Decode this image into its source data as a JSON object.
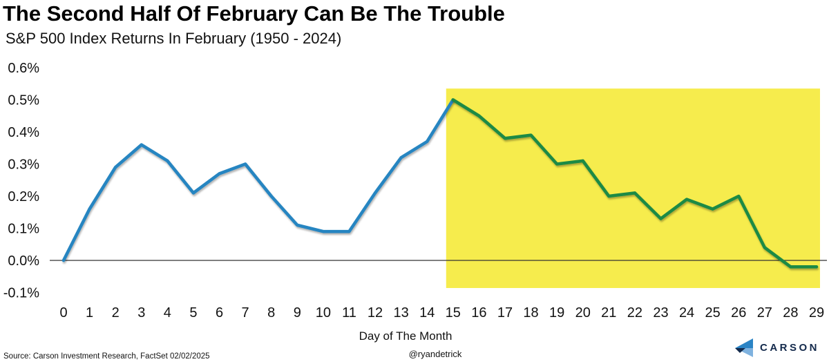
{
  "header": {
    "title": "The Second Half Of February Can Be The Trouble",
    "subtitle": "S&P 500 Index Returns In February (1950 - 2024)"
  },
  "footer": {
    "source": "Source: Carson Investment Research, FactSet 02/02/2025",
    "handle": "@ryandetrick",
    "logo_text": "CARSON"
  },
  "colors": {
    "first_half_line": "#2585C1",
    "second_half_line": "#1C8A44",
    "highlight": "#F6EC4D",
    "axis_line": "#333333",
    "tick_text": "#111111",
    "logo_navy": "#13294B",
    "logo_blue": "#2B84C5",
    "logo_light_blue": "#7FB2DF"
  },
  "chart_data": {
    "type": "line",
    "title": "The Second Half Of February Can Be The Trouble",
    "subtitle": "S&P 500 Index Returns In February (1950 - 2024)",
    "xlabel": "Day of The Month",
    "ylabel": "",
    "x": [
      0,
      1,
      2,
      3,
      4,
      5,
      6,
      7,
      8,
      9,
      10,
      11,
      12,
      13,
      14,
      15,
      16,
      17,
      18,
      19,
      20,
      21,
      22,
      23,
      24,
      25,
      26,
      27,
      28,
      29
    ],
    "values_pct": [
      0.0,
      0.16,
      0.29,
      0.36,
      0.31,
      0.21,
      0.27,
      0.3,
      0.2,
      0.11,
      0.09,
      0.09,
      0.21,
      0.32,
      0.37,
      0.5,
      0.45,
      0.38,
      0.39,
      0.3,
      0.31,
      0.2,
      0.21,
      0.13,
      0.19,
      0.16,
      0.2,
      0.04,
      -0.02,
      -0.02
    ],
    "series": [
      {
        "name": "first-half-of-month",
        "day_start": 0,
        "day_end": 15,
        "color_key": "first_half_line"
      },
      {
        "name": "second-half-of-month",
        "day_start": 15,
        "day_end": 29,
        "color_key": "second_half_line"
      }
    ],
    "y_ticks": [
      {
        "value": 0.6,
        "label": "0.6%"
      },
      {
        "value": 0.5,
        "label": "0.5%"
      },
      {
        "value": 0.4,
        "label": "0.4%"
      },
      {
        "value": 0.3,
        "label": "0.3%"
      },
      {
        "value": 0.2,
        "label": "0.2%"
      },
      {
        "value": 0.1,
        "label": "0.1%"
      },
      {
        "value": 0.0,
        "label": "0.0%"
      },
      {
        "value": -0.1,
        "label": "-0.1%"
      }
    ],
    "ylim": [
      -0.1,
      0.6
    ],
    "highlight": {
      "day_start": 15,
      "day_end": 29,
      "meaning": "second half of February"
    },
    "grid": false,
    "legend_position": "none"
  }
}
